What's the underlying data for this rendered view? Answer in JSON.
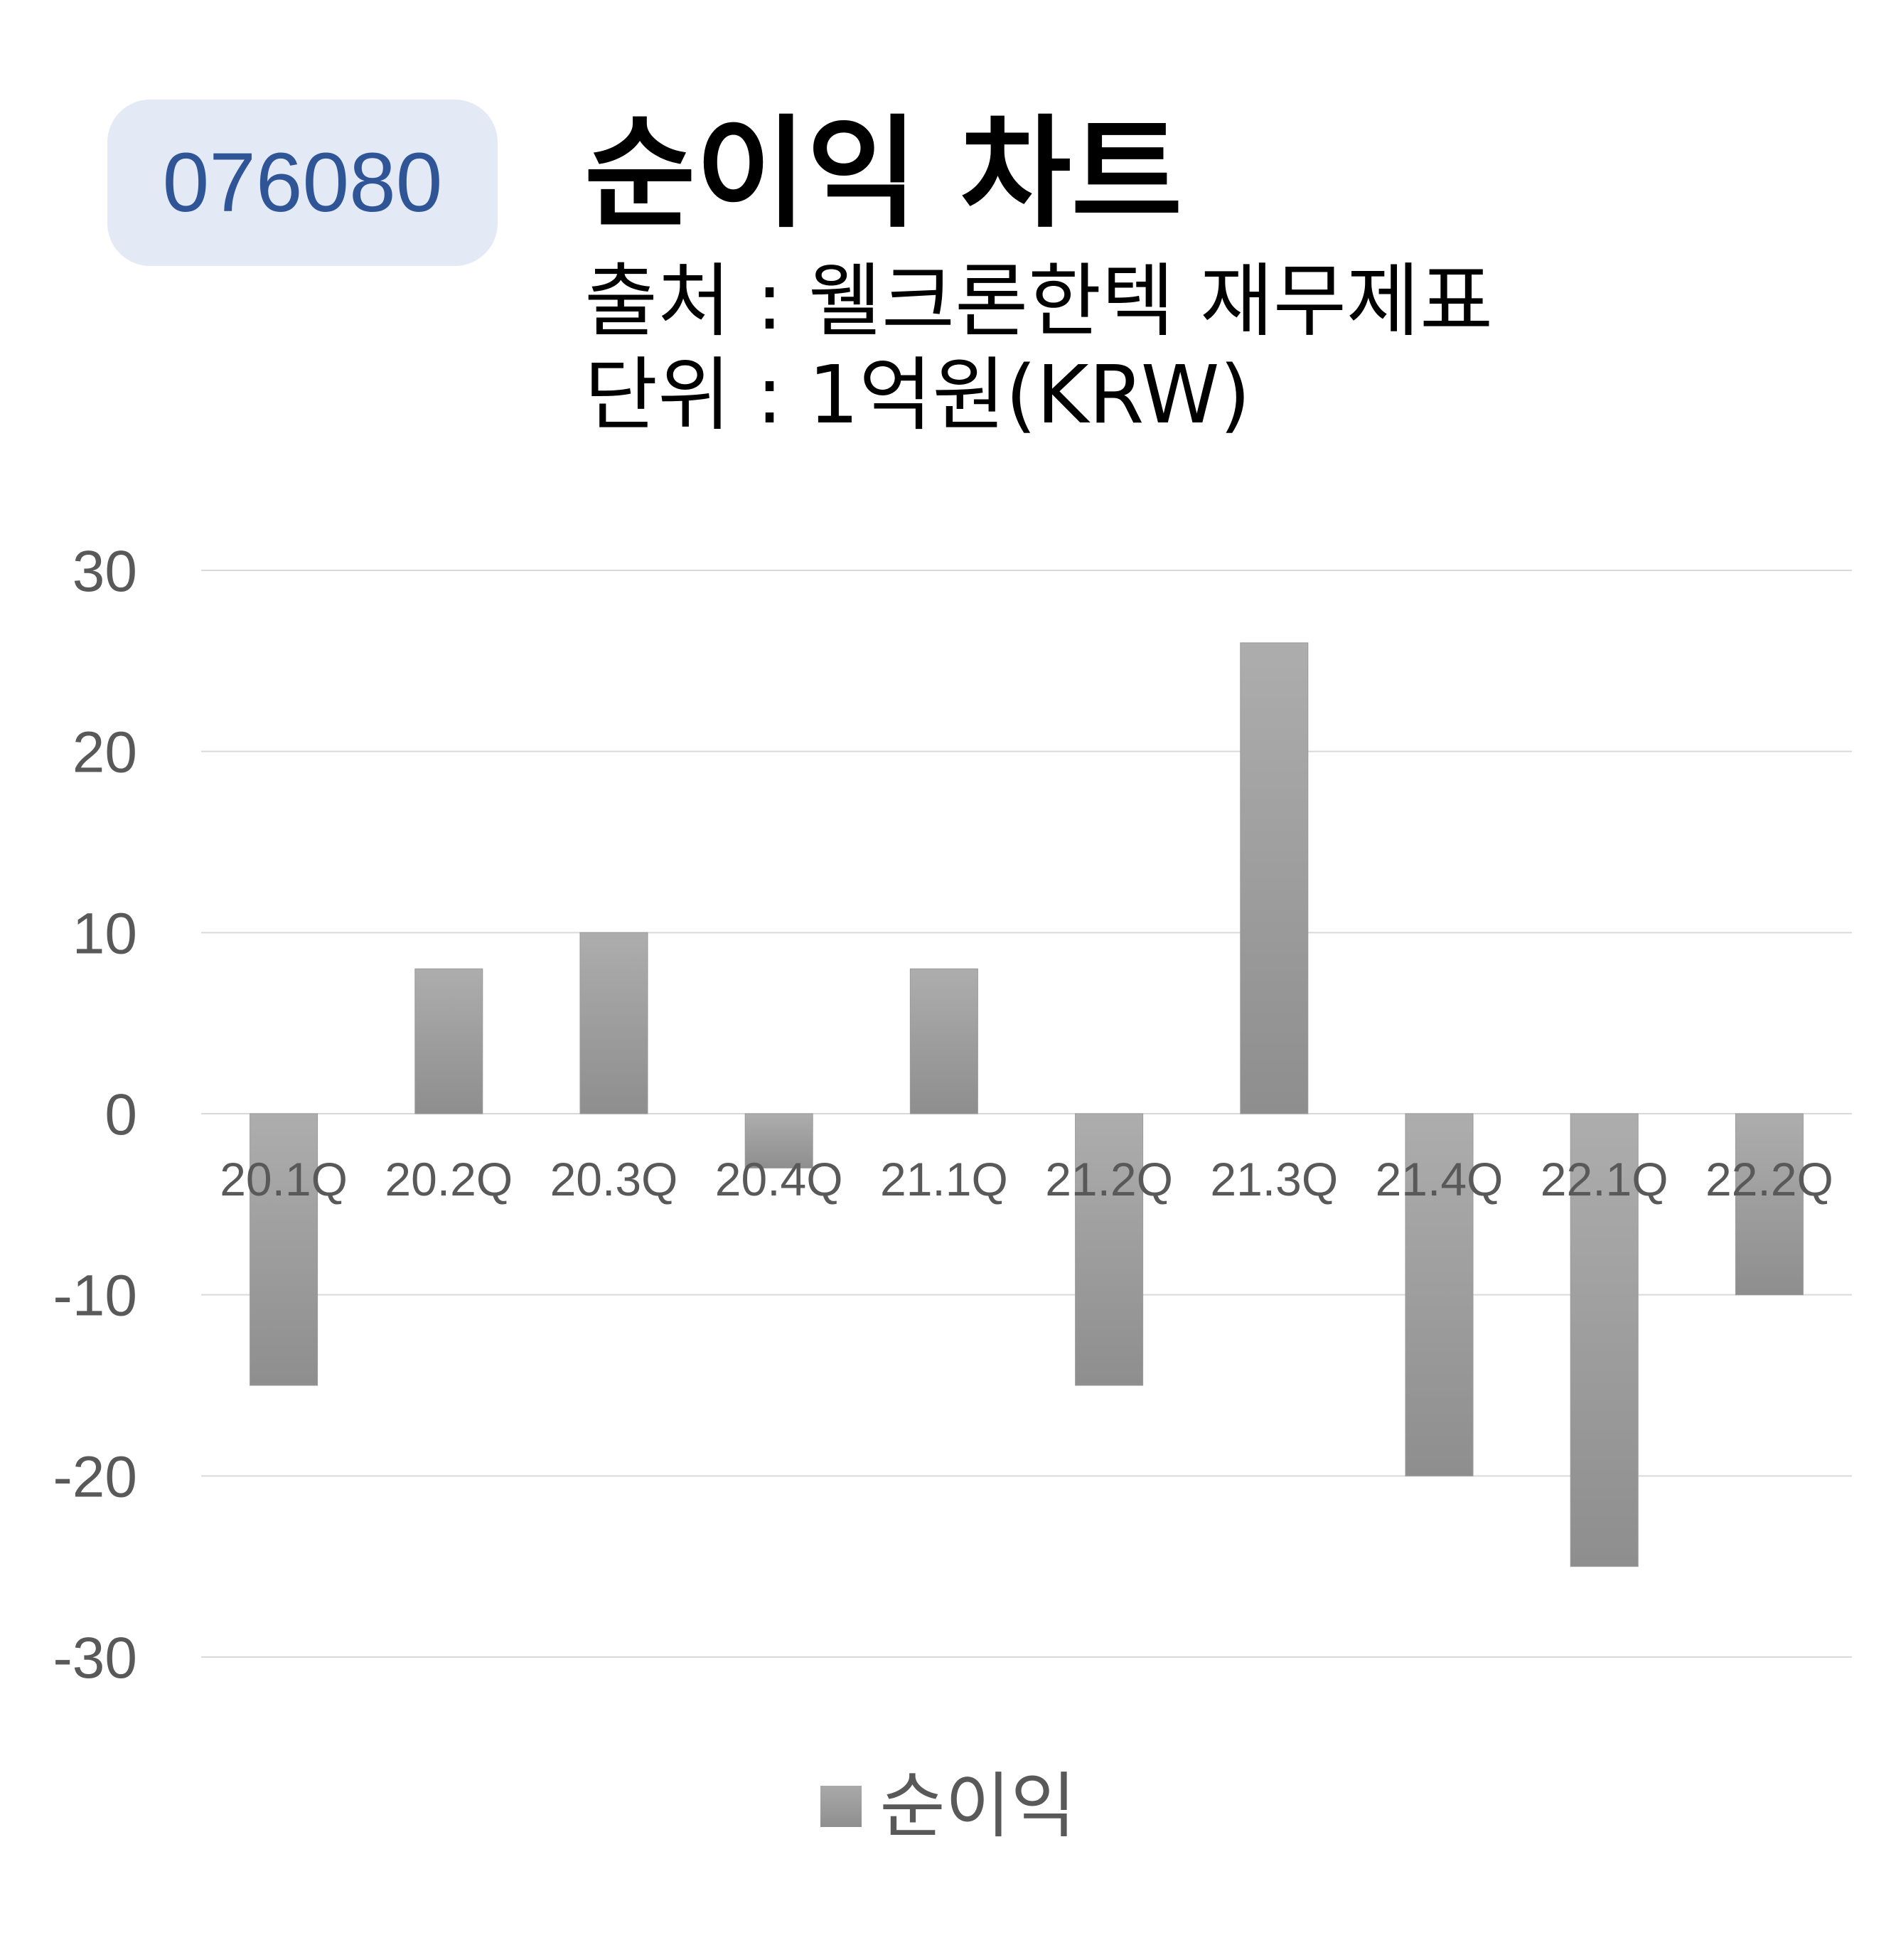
{
  "header": {
    "code": "076080",
    "title": "순이익 차트",
    "source": "출처 : 웰크론한텍 재무제표",
    "unit": "단위 : 1억원(KRW)"
  },
  "chart_data": {
    "type": "bar",
    "categories": [
      "20.1Q",
      "20.2Q",
      "20.3Q",
      "20.4Q",
      "21.1Q",
      "21.2Q",
      "21.3Q",
      "21.4Q",
      "22.1Q",
      "22.2Q"
    ],
    "series": [
      {
        "name": "순이익",
        "values": [
          -15,
          8,
          10,
          -3,
          8,
          -15,
          26,
          -20,
          -25,
          -10
        ]
      }
    ],
    "ylim": [
      -30,
      30
    ],
    "yticks": [
      30,
      20,
      10,
      0,
      -10,
      -20,
      -30
    ],
    "grid": true,
    "legend": "bottom-center",
    "bar_color": "#a0a0a0",
    "grid_color": "#d9d9d9",
    "label_color": "#595959"
  }
}
